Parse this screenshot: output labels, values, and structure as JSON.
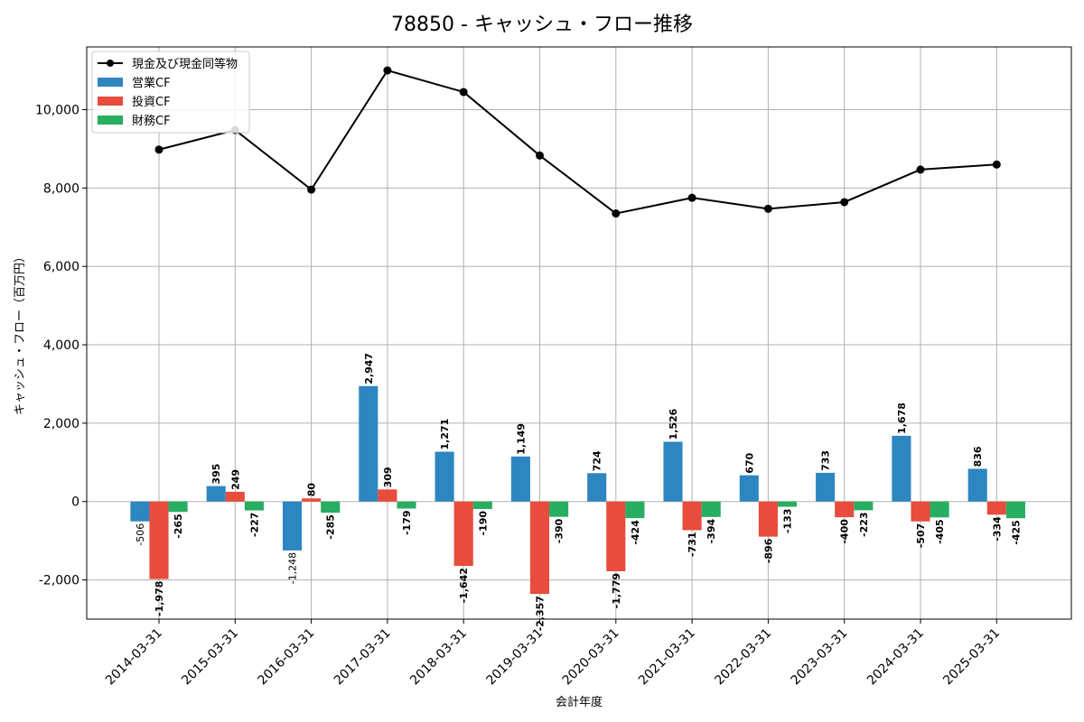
{
  "chart_data": {
    "type": "bar",
    "title": "78850 - キャッシュ・フロー推移",
    "xlabel": "会計年度",
    "ylabel": "キャッシュ・フロー（百万円）",
    "categories": [
      "2014-03-31",
      "2015-03-31",
      "2016-03-31",
      "2017-03-31",
      "2018-03-31",
      "2019-03-31",
      "2020-03-31",
      "2021-03-31",
      "2022-03-31",
      "2023-03-31",
      "2024-03-31",
      "2025-03-31"
    ],
    "ylim": [
      -3000,
      11600
    ],
    "yticks": [
      -2000,
      0,
      2000,
      4000,
      6000,
      8000,
      10000
    ],
    "ytick_labels": [
      "-2,000",
      "0",
      "2,000",
      "4,000",
      "6,000",
      "8,000",
      "10,000"
    ],
    "grid": true,
    "legend_position": "top-left",
    "series": [
      {
        "name": "営業CF",
        "kind": "bar",
        "color": "#2e86c1",
        "values": [
          -506,
          395,
          -1248,
          2947,
          1271,
          1149,
          724,
          1526,
          670,
          733,
          1678,
          836
        ],
        "labels": [
          "-506",
          "395",
          "-1,248",
          "2,947",
          "1,271",
          "1,149",
          "724",
          "1,526",
          "670",
          "733",
          "1,678",
          "836"
        ]
      },
      {
        "name": "投資CF",
        "kind": "bar",
        "color": "#e74c3c",
        "values": [
          -1978,
          249,
          80,
          309,
          -1642,
          -2357,
          -1779,
          -731,
          -896,
          -400,
          -507,
          -334
        ],
        "labels": [
          "-1,978",
          "249",
          "80",
          "309",
          "-1,642",
          "-2,357",
          "-1,779",
          "-731",
          "-896",
          "-400",
          "-507",
          "-334"
        ]
      },
      {
        "name": "財務CF",
        "kind": "bar",
        "color": "#27ae60",
        "values": [
          -265,
          -227,
          -285,
          -179,
          -190,
          -390,
          -424,
          -394,
          -133,
          -223,
          -405,
          -425
        ],
        "labels": [
          "-265",
          "-227",
          "-285",
          "-179",
          "-190",
          "-390",
          "-424",
          "-394",
          "-133",
          "-223",
          "-405",
          "-425"
        ]
      },
      {
        "name": "現金及び現金同等物",
        "kind": "line",
        "color": "#000000",
        "values": [
          8980,
          9480,
          7960,
          11000,
          10450,
          8830,
          7350,
          7750,
          7470,
          7640,
          8470,
          8600
        ]
      }
    ]
  }
}
